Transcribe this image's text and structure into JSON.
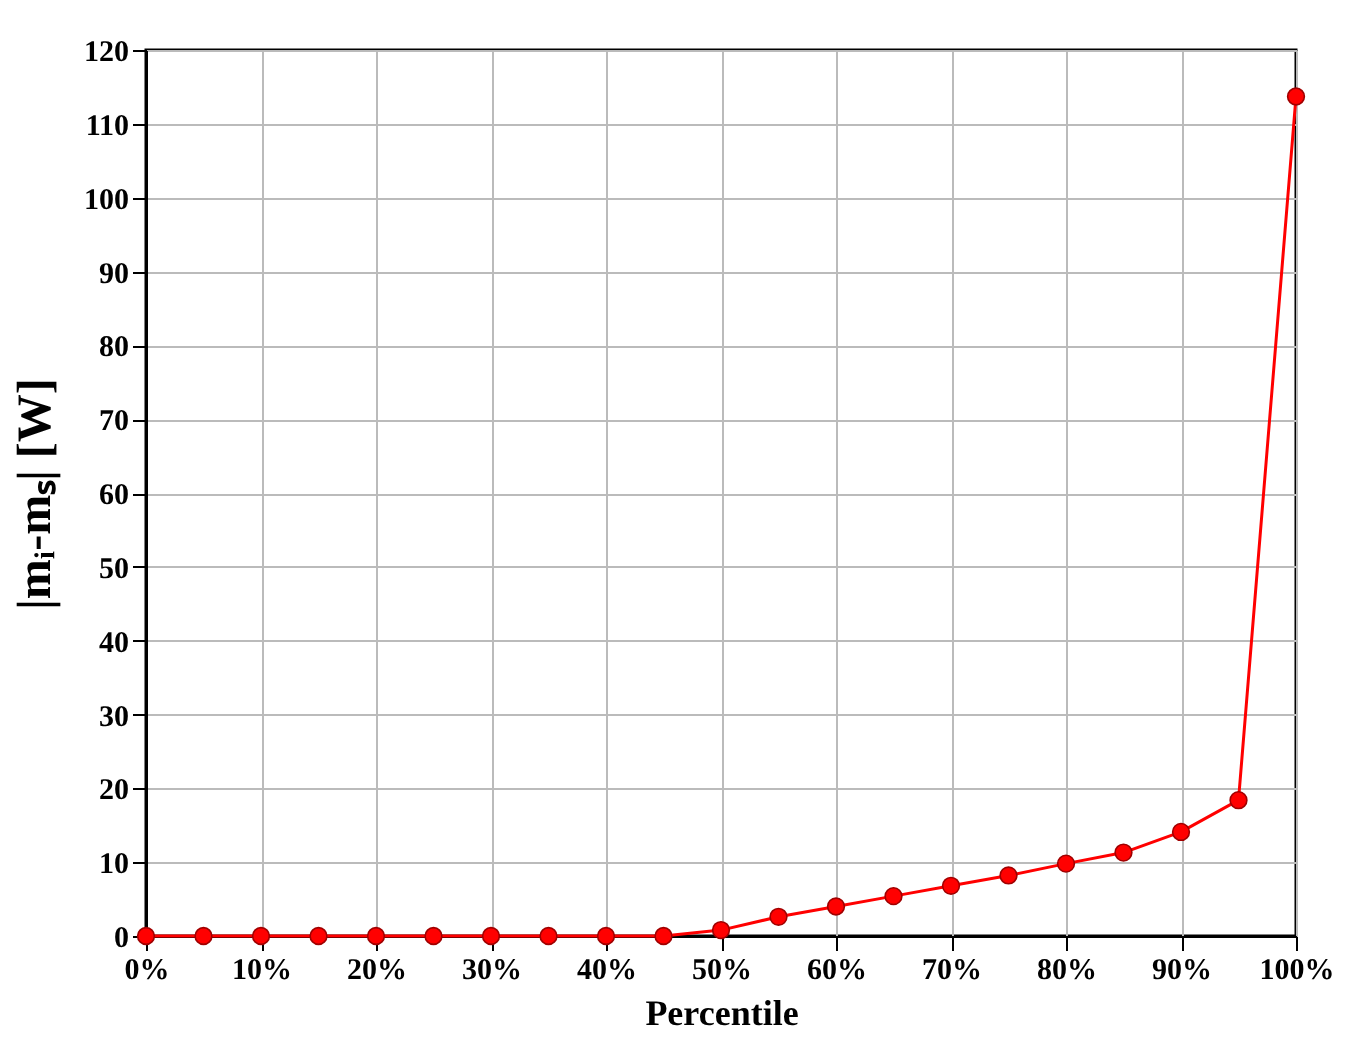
{
  "chart_data": {
    "type": "line",
    "xlabel": "Percentile",
    "ylabel": "|mᵢ-mₛ| [W]",
    "x": [
      0,
      5,
      10,
      15,
      20,
      25,
      30,
      35,
      40,
      45,
      50,
      55,
      60,
      65,
      70,
      75,
      80,
      85,
      90,
      95,
      100
    ],
    "series": [
      {
        "color": "#ff0000",
        "values": [
          0,
          0,
          0,
          0,
          0,
          0,
          0,
          0,
          0,
          0,
          0.8,
          2.6,
          4.0,
          5.4,
          6.8,
          8.2,
          9.8,
          11.3,
          14.1,
          18.4,
          113.7
        ]
      }
    ],
    "xlim": [
      0,
      100
    ],
    "xticks": [
      {
        "value": 0,
        "label": "0%"
      },
      {
        "value": 10,
        "label": "10%"
      },
      {
        "value": 20,
        "label": "20%"
      },
      {
        "value": 30,
        "label": "30%"
      },
      {
        "value": 40,
        "label": "40%"
      },
      {
        "value": 50,
        "label": "50%"
      },
      {
        "value": 60,
        "label": "60%"
      },
      {
        "value": 70,
        "label": "70%"
      },
      {
        "value": 80,
        "label": "80%"
      },
      {
        "value": 90,
        "label": "90%"
      },
      {
        "value": 100,
        "label": "100%"
      }
    ],
    "ylim": [
      0,
      120
    ],
    "yticks": [
      0,
      10,
      20,
      30,
      40,
      50,
      60,
      70,
      80,
      90,
      100,
      110,
      120
    ],
    "grid": true,
    "marker": "circle",
    "line_style": "solid"
  }
}
